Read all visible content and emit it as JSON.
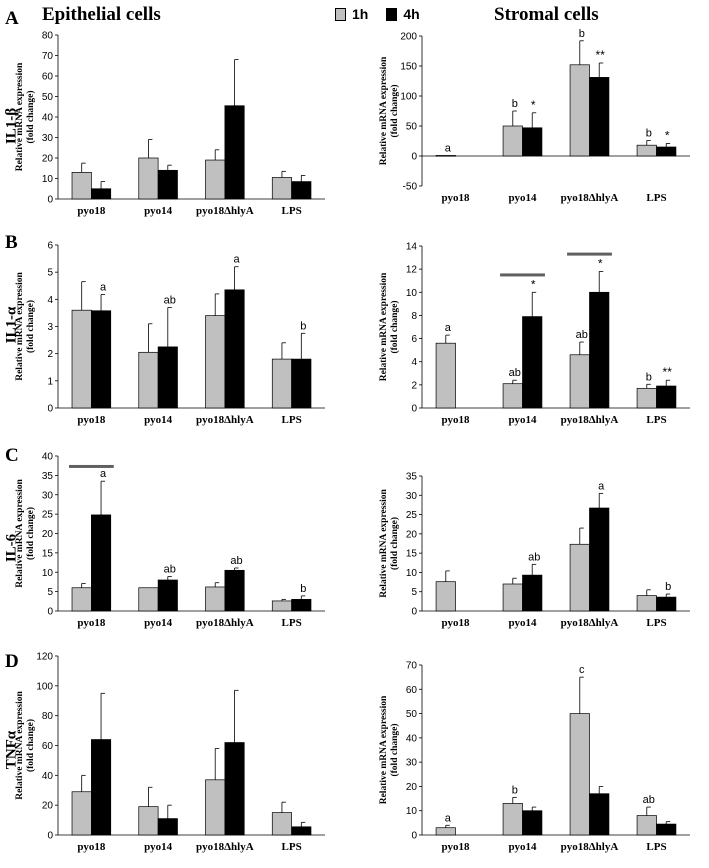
{
  "figure": {
    "epithelial_title": "Epithelial cells",
    "stromal_title": "Stromal cells",
    "panel_letters": [
      "A",
      "B",
      "C",
      "D"
    ],
    "cytokines": [
      "IL1-β",
      "IL1-α",
      "IL-6",
      "TNFα"
    ]
  },
  "legend": {
    "items": [
      {
        "label": "1h",
        "color": "#c0c0c0"
      },
      {
        "label": "4h",
        "color": "#000000"
      }
    ]
  },
  "colors": {
    "bar_1h": "#c0c0c0",
    "bar_4h": "#000000",
    "sig_line": "#606060"
  },
  "chart_data": [
    {
      "id": "A-epi",
      "type": "bar",
      "title": "IL1-β Epithelial cells",
      "ylabel": [
        "Relative mRNA expression",
        "(fold change)"
      ],
      "categories": [
        "pyo18",
        "pyo14",
        "pyo18ΔhlyA",
        "LPS"
      ],
      "ylim": [
        0,
        80
      ],
      "yticks": [
        0,
        10,
        20,
        30,
        40,
        50,
        60,
        70,
        80
      ],
      "series": [
        {
          "name": "1h",
          "values": [
            13,
            20,
            19,
            10.5
          ],
          "errors": [
            4.5,
            9,
            5,
            3
          ]
        },
        {
          "name": "4h",
          "values": [
            5,
            14,
            45.5,
            8.5
          ],
          "errors": [
            3.5,
            2.5,
            22.5,
            3
          ]
        }
      ],
      "annotations": [],
      "sig_bars": []
    },
    {
      "id": "A-str",
      "type": "bar",
      "title": "IL1-β Stromal cells",
      "ylabel": [
        "Relative mRNA expression",
        "(fold change)"
      ],
      "categories": [
        "pyo18",
        "pyo14",
        "pyo18ΔhlyA",
        "LPS"
      ],
      "ylim": [
        -50,
        200
      ],
      "yticks": [
        -50,
        0,
        50,
        100,
        150,
        200
      ],
      "series": [
        {
          "name": "1h",
          "values": [
            1,
            50,
            152,
            18
          ],
          "errors": [
            0,
            25,
            40,
            8
          ]
        },
        {
          "name": "4h",
          "values": [
            0,
            47,
            131,
            15
          ],
          "errors": [
            0,
            25,
            24,
            6
          ]
        }
      ],
      "annotations": [
        {
          "category": 0,
          "series": 0,
          "text": "a"
        },
        {
          "category": 1,
          "series": 0,
          "text": "b"
        },
        {
          "category": 1,
          "series": 1,
          "text": "*"
        },
        {
          "category": 2,
          "series": 0,
          "text": "b"
        },
        {
          "category": 2,
          "series": 1,
          "text": "**"
        },
        {
          "category": 3,
          "series": 0,
          "text": "b"
        },
        {
          "category": 3,
          "series": 1,
          "text": "*"
        }
      ],
      "sig_bars": []
    },
    {
      "id": "B-epi",
      "type": "bar",
      "title": "IL1-α Epithelial cells",
      "ylabel": [
        "Relative mRNA expression",
        "(fold change)"
      ],
      "categories": [
        "pyo18",
        "pyo14",
        "pyo18ΔhlyA",
        "LPS"
      ],
      "ylim": [
        0,
        6
      ],
      "yticks": [
        0,
        1,
        2,
        3,
        4,
        5,
        6
      ],
      "series": [
        {
          "name": "1h",
          "values": [
            3.6,
            2.05,
            3.4,
            1.8
          ],
          "errors": [
            1.05,
            1.05,
            0.8,
            0.6
          ]
        },
        {
          "name": "4h",
          "values": [
            3.58,
            2.25,
            4.35,
            1.8
          ],
          "errors": [
            0.6,
            1.45,
            0.85,
            0.95
          ]
        }
      ],
      "annotations": [
        {
          "category": 0,
          "series": 1,
          "text": "a"
        },
        {
          "category": 1,
          "series": 1,
          "text": "ab"
        },
        {
          "category": 2,
          "series": 1,
          "text": "a"
        },
        {
          "category": 3,
          "series": 1,
          "text": "b"
        }
      ],
      "sig_bars": []
    },
    {
      "id": "B-str",
      "type": "bar",
      "title": "IL1-α Stromal cells",
      "ylabel": [
        "Relative mRNA expression",
        "(fold change)"
      ],
      "categories": [
        "pyo18",
        "pyo14",
        "pyo18ΔhlyA",
        "LPS"
      ],
      "ylim": [
        0,
        14
      ],
      "yticks": [
        0,
        2,
        4,
        6,
        8,
        10,
        12,
        14
      ],
      "series": [
        {
          "name": "1h",
          "values": [
            5.6,
            2.1,
            4.6,
            1.7
          ],
          "errors": [
            0.7,
            0.3,
            1.1,
            0.35
          ]
        },
        {
          "name": "4h",
          "values": [
            0,
            7.9,
            10,
            1.9
          ],
          "errors": [
            0,
            2.1,
            1.8,
            0.5
          ]
        }
      ],
      "annotations": [
        {
          "category": 0,
          "series": 0,
          "text": "a"
        },
        {
          "category": 1,
          "series": 0,
          "text": "ab"
        },
        {
          "category": 1,
          "series": 1,
          "text": "*"
        },
        {
          "category": 2,
          "series": 0,
          "text": "ab"
        },
        {
          "category": 2,
          "series": 1,
          "text": "*"
        },
        {
          "category": 3,
          "series": 0,
          "text": "b"
        },
        {
          "category": 3,
          "series": 1,
          "text": "**"
        }
      ],
      "sig_bars": [
        {
          "category": 1,
          "y": 11.5
        },
        {
          "category": 2,
          "y": 13.3
        }
      ]
    },
    {
      "id": "C-epi",
      "type": "bar",
      "title": "IL-6 Epithelial cells",
      "ylabel": [
        "Relative mRNA expression",
        "(fold change)"
      ],
      "categories": [
        "pyo18",
        "pyo14",
        "pyo18ΔhlyA",
        "LPS"
      ],
      "ylim": [
        0,
        40
      ],
      "yticks": [
        0,
        5,
        10,
        15,
        20,
        25,
        30,
        35,
        40
      ],
      "series": [
        {
          "name": "1h",
          "values": [
            6,
            6,
            6.2,
            2.6
          ],
          "errors": [
            1.1,
            0,
            1.1,
            0.4
          ]
        },
        {
          "name": "4h",
          "values": [
            24.8,
            8,
            10.5,
            3
          ],
          "errors": [
            8.7,
            0.9,
            0.6,
            0.9
          ]
        }
      ],
      "annotations": [
        {
          "category": 0,
          "series": 1,
          "text": "a"
        },
        {
          "category": 1,
          "series": 1,
          "text": "ab"
        },
        {
          "category": 2,
          "series": 1,
          "text": "ab"
        },
        {
          "category": 3,
          "series": 1,
          "text": "b"
        }
      ],
      "sig_bars": [
        {
          "category": 0,
          "y": 37.3
        }
      ]
    },
    {
      "id": "C-str",
      "type": "bar",
      "title": "IL-6 Stromal cells",
      "ylabel": [
        "Relative mRNA expression",
        "(fold change)"
      ],
      "categories": [
        "pyo18",
        "pyo14",
        "pyo18ΔhlyA",
        "LPS"
      ],
      "ylim": [
        0,
        35
      ],
      "yticks": [
        0,
        5,
        10,
        15,
        20,
        25,
        30,
        35
      ],
      "series": [
        {
          "name": "1h",
          "values": [
            7.6,
            7,
            17.3,
            4
          ],
          "errors": [
            2.8,
            1.5,
            4.2,
            1.5
          ]
        },
        {
          "name": "4h",
          "values": [
            0,
            9.3,
            26.7,
            3.6
          ],
          "errors": [
            0,
            2.8,
            3.8,
            0.8
          ]
        }
      ],
      "annotations": [
        {
          "category": 1,
          "series": 1,
          "text": "ab"
        },
        {
          "category": 2,
          "series": 1,
          "text": "a"
        },
        {
          "category": 3,
          "series": 1,
          "text": "b"
        }
      ],
      "sig_bars": []
    },
    {
      "id": "D-epi",
      "type": "bar",
      "title": "TNFα Epithelial cells",
      "ylabel": [
        "Relative mRNA expression",
        "(fold change)"
      ],
      "categories": [
        "pyo18",
        "pyo14",
        "pyo18ΔhlyA",
        "LPS"
      ],
      "ylim": [
        0,
        120
      ],
      "yticks": [
        0,
        20,
        40,
        60,
        80,
        100,
        120
      ],
      "series": [
        {
          "name": "1h",
          "values": [
            29,
            19,
            37,
            15
          ],
          "errors": [
            11,
            13,
            21,
            7
          ]
        },
        {
          "name": "4h",
          "values": [
            64,
            11,
            62,
            5.5
          ],
          "errors": [
            31,
            9,
            35,
            3
          ]
        }
      ],
      "annotations": [],
      "sig_bars": []
    },
    {
      "id": "D-str",
      "type": "bar",
      "title": "TNFα Stromal cells",
      "ylabel": [
        "Relative mRNA expression",
        "(fold change)"
      ],
      "categories": [
        "pyo18",
        "pyo14",
        "pyo18ΔhlyA",
        "LPS"
      ],
      "ylim": [
        0,
        70
      ],
      "yticks": [
        0,
        10,
        20,
        30,
        40,
        50,
        60,
        70
      ],
      "series": [
        {
          "name": "1h",
          "values": [
            3,
            13,
            50,
            8
          ],
          "errors": [
            1,
            2.5,
            15,
            3.5
          ]
        },
        {
          "name": "4h",
          "values": [
            0,
            10,
            17,
            4.5
          ],
          "errors": [
            0,
            1.5,
            3,
            1
          ]
        }
      ],
      "annotations": [
        {
          "category": 0,
          "series": 0,
          "text": "a"
        },
        {
          "category": 1,
          "series": 0,
          "text": "b"
        },
        {
          "category": 2,
          "series": 0,
          "text": "c"
        },
        {
          "category": 3,
          "series": 0,
          "text": "ab"
        }
      ],
      "sig_bars": []
    }
  ]
}
